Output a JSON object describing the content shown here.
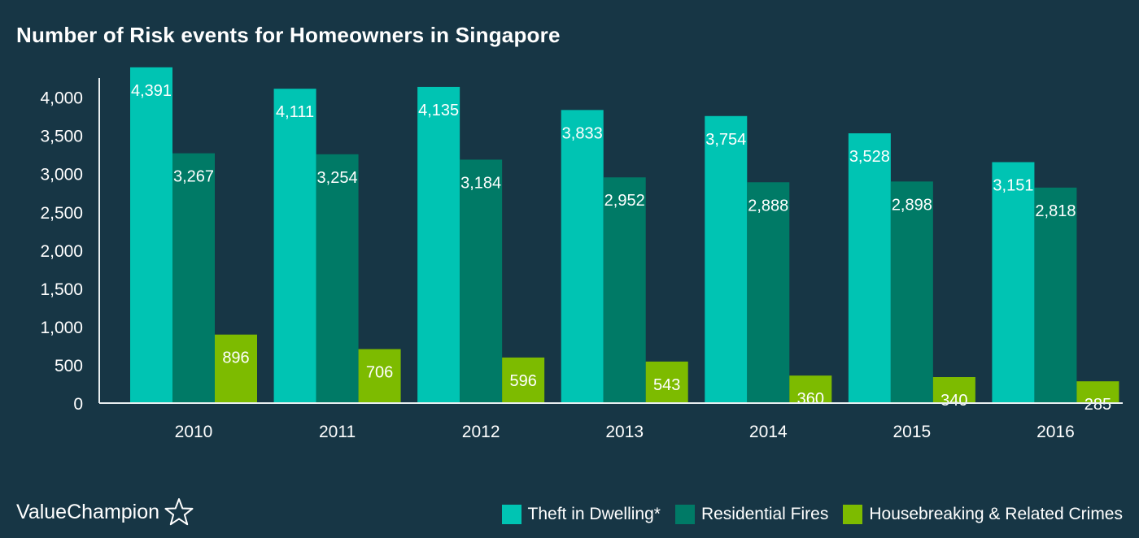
{
  "chart_data": {
    "type": "bar",
    "title": "Number of Risk events for Homeowners in Singapore",
    "categories": [
      "2010",
      "2011",
      "2012",
      "2013",
      "2014",
      "2015",
      "2016"
    ],
    "series": [
      {
        "name": "Theft in Dwelling*",
        "color": "#00c4b3",
        "values": [
          4391,
          4111,
          4135,
          3833,
          3754,
          3528,
          3151
        ],
        "labels": [
          "4,391",
          "4,111",
          "4,135",
          "3,833",
          "3,754",
          "3,528",
          "3,151"
        ]
      },
      {
        "name": "Residential Fires",
        "color": "#007a66",
        "values": [
          3267,
          3254,
          3184,
          2952,
          2888,
          2898,
          2818
        ],
        "labels": [
          "3,267",
          "3,254",
          "3,184",
          "2,952",
          "2,888",
          "2,898",
          "2,818"
        ]
      },
      {
        "name": "Housebreaking & Related Crimes",
        "color": "#7dbb00",
        "values": [
          896,
          706,
          596,
          543,
          360,
          340,
          285
        ],
        "labels": [
          "896",
          "706",
          "596",
          "543",
          "360",
          "340",
          "285"
        ]
      }
    ],
    "yticks": [
      0,
      500,
      1000,
      1500,
      2000,
      2500,
      3000,
      3500,
      4000
    ],
    "ytick_labels": [
      "0",
      "500",
      "1,000",
      "1,500",
      "2,000",
      "2,500",
      "3,000",
      "3,500",
      "4,000"
    ],
    "ylim": [
      0,
      4400
    ],
    "grid": false,
    "legend_position": "bottom-right",
    "xlabel": "",
    "ylabel": ""
  },
  "brand": {
    "name": "ValueChampion",
    "icon": "star-outline-icon"
  },
  "colors": {
    "background": "#173645",
    "axis": "#e8eef0"
  }
}
